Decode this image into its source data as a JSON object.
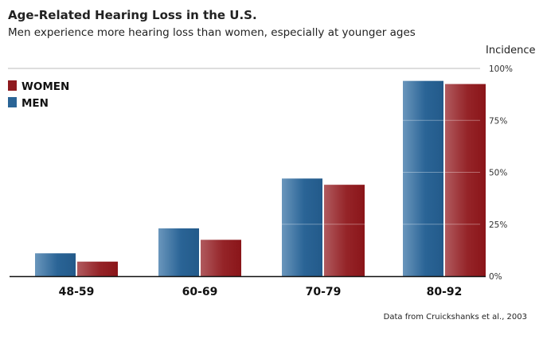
{
  "chart_data": {
    "type": "bar",
    "title": "Age-Related Hearing Loss in the U.S.",
    "subtitle": "Men experience more hearing loss than women, especially at younger ages",
    "ylabel": "Incidence",
    "xlabel": "",
    "categories": [
      "48-59",
      "60-69",
      "70-79",
      "80-92"
    ],
    "series": [
      {
        "name": "MEN",
        "color": "#2a6496",
        "values": [
          11,
          23,
          47,
          94
        ]
      },
      {
        "name": "WOMEN",
        "color": "#8e1a1e",
        "values": [
          7,
          17.5,
          44,
          92.5
        ]
      }
    ],
    "legend_order": [
      "WOMEN",
      "MEN"
    ],
    "ylim": [
      0,
      100
    ],
    "yticks": [
      0,
      25,
      50,
      75,
      100
    ],
    "ytick_labels": [
      "0%",
      "25%",
      "50%",
      "75%",
      "100%"
    ],
    "grid": true,
    "legend_placement": "top-left",
    "yaxis_side": "right",
    "source": "Data from Cruickshanks et al., 2003"
  }
}
